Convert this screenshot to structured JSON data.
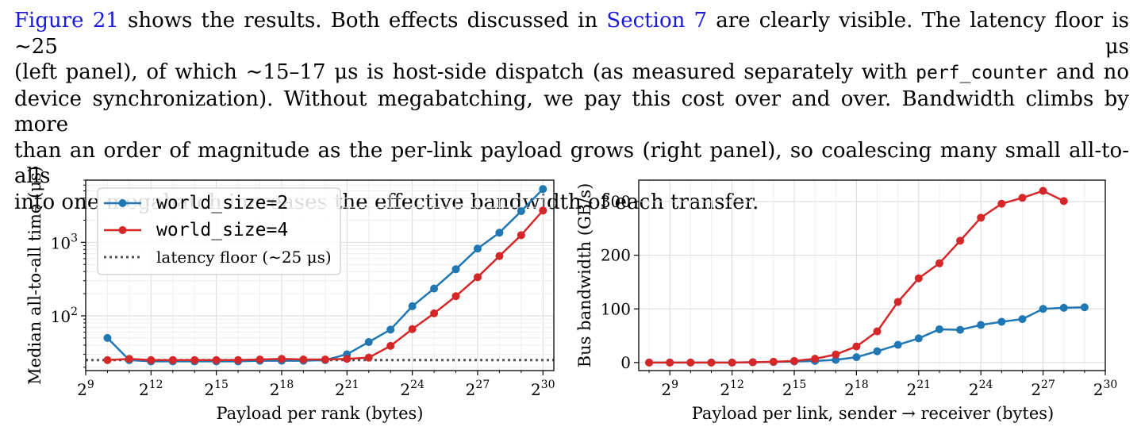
{
  "paragraph": {
    "line1": {
      "ref1": "Figure 21",
      "text1": " shows the results. Both effects discussed in ",
      "ref2": "Section 7",
      "text2": " are clearly visible. The latency floor is ∼25 μs"
    },
    "line2": {
      "text1": "(left panel), of which ∼15–17 μs is host-side dispatch (as measured separately with ",
      "code": "perf_counter",
      "text2": " and no"
    },
    "line3": "device synchronization). Without megabatching, we pay this cost over and over. Bandwidth climbs by more",
    "line4": "than an order of magnitude as the per-link payload grows (right panel), so coalescing many small all-to-alls",
    "line5": "into one megabatch increases the effective bandwidth of each transfer."
  },
  "colors": {
    "world_size_2": "#1f77b4",
    "world_size_4": "#d62728",
    "latency_floor": "#555555"
  },
  "chart_data": [
    {
      "type": "line",
      "xlabel": "Payload per rank (bytes)",
      "ylabel": "Median all-to-all time (μs)",
      "x_scale": "log2",
      "y_scale": "log10",
      "xlim_exp2": [
        9,
        30.5
      ],
      "ylim": [
        18,
        7000
      ],
      "x_ticks": [
        {
          "exp": 9,
          "label": "9"
        },
        {
          "exp": 12,
          "label": "12"
        },
        {
          "exp": 15,
          "label": "15"
        },
        {
          "exp": 18,
          "label": "18"
        },
        {
          "exp": 21,
          "label": "21"
        },
        {
          "exp": 24,
          "label": "24"
        },
        {
          "exp": 27,
          "label": "27"
        },
        {
          "exp": 30,
          "label": "30"
        }
      ],
      "y_ticks": [
        {
          "value": 100,
          "base": "10",
          "exp": "2"
        },
        {
          "value": 1000,
          "base": "10",
          "exp": "3"
        }
      ],
      "grid": true,
      "legend": {
        "placement": "top-left",
        "latency_label": "latency floor (∼25 μs)"
      },
      "latency_floor": 25,
      "series": [
        {
          "name": "world_size=2",
          "x_exp2": [
            10,
            11,
            12,
            13,
            14,
            15,
            16,
            17,
            18,
            19,
            20,
            21,
            22,
            23,
            24,
            25,
            26,
            27,
            28,
            29,
            30
          ],
          "values": [
            50,
            25,
            24,
            24,
            24,
            24,
            24,
            24.5,
            24.5,
            24.5,
            25,
            30,
            44,
            65,
            135,
            235,
            430,
            820,
            1350,
            2650,
            5300
          ]
        },
        {
          "name": "world_size=4",
          "x_exp2": [
            10,
            11,
            12,
            13,
            14,
            15,
            16,
            17,
            18,
            19,
            20,
            21,
            22,
            23,
            24,
            25,
            26,
            27,
            28,
            29,
            30
          ],
          "values": [
            25,
            26,
            25,
            25,
            25,
            25,
            25,
            25.5,
            26,
            25.5,
            25.5,
            26,
            27,
            39,
            66,
            108,
            185,
            335,
            650,
            1250,
            2700
          ]
        }
      ]
    },
    {
      "type": "line",
      "xlabel": "Payload per link, sender → receiver (bytes)",
      "ylabel": "Bus bandwidth (GB/s)",
      "x_scale": "log2",
      "xlim_exp2": [
        7.5,
        30
      ],
      "ylim": [
        -15,
        340
      ],
      "x_ticks": [
        {
          "exp": 9,
          "label": "9"
        },
        {
          "exp": 12,
          "label": "12"
        },
        {
          "exp": 15,
          "label": "15"
        },
        {
          "exp": 18,
          "label": "18"
        },
        {
          "exp": 21,
          "label": "21"
        },
        {
          "exp": 24,
          "label": "24"
        },
        {
          "exp": 27,
          "label": "27"
        },
        {
          "exp": 30,
          "label": "30"
        }
      ],
      "y_ticks": [
        {
          "value": 0,
          "label": "0"
        },
        {
          "value": 100,
          "label": "100"
        },
        {
          "value": 200,
          "label": "200"
        },
        {
          "value": 300,
          "label": "300"
        }
      ],
      "grid": true,
      "series": [
        {
          "name": "world_size=2",
          "x_exp2": [
            8,
            9,
            10,
            11,
            12,
            13,
            14,
            15,
            16,
            17,
            18,
            19,
            20,
            21,
            22,
            23,
            24,
            25,
            26,
            27,
            28,
            29
          ],
          "values": [
            0,
            0,
            0,
            0,
            0,
            0.5,
            1,
            2,
            3,
            5,
            10,
            21,
            33,
            45,
            62,
            61,
            70,
            76,
            81,
            100,
            102,
            103
          ]
        },
        {
          "name": "world_size=4",
          "x_exp2": [
            8,
            9,
            10,
            11,
            12,
            13,
            14,
            15,
            16,
            17,
            18,
            19,
            20,
            21,
            22,
            23,
            24,
            25,
            26,
            27,
            28
          ],
          "values": [
            0,
            0,
            0,
            0,
            0,
            0.5,
            1.5,
            3,
            7,
            15,
            30,
            58,
            113,
            157,
            185,
            227,
            270,
            296,
            307,
            320,
            301
          ]
        }
      ]
    }
  ]
}
